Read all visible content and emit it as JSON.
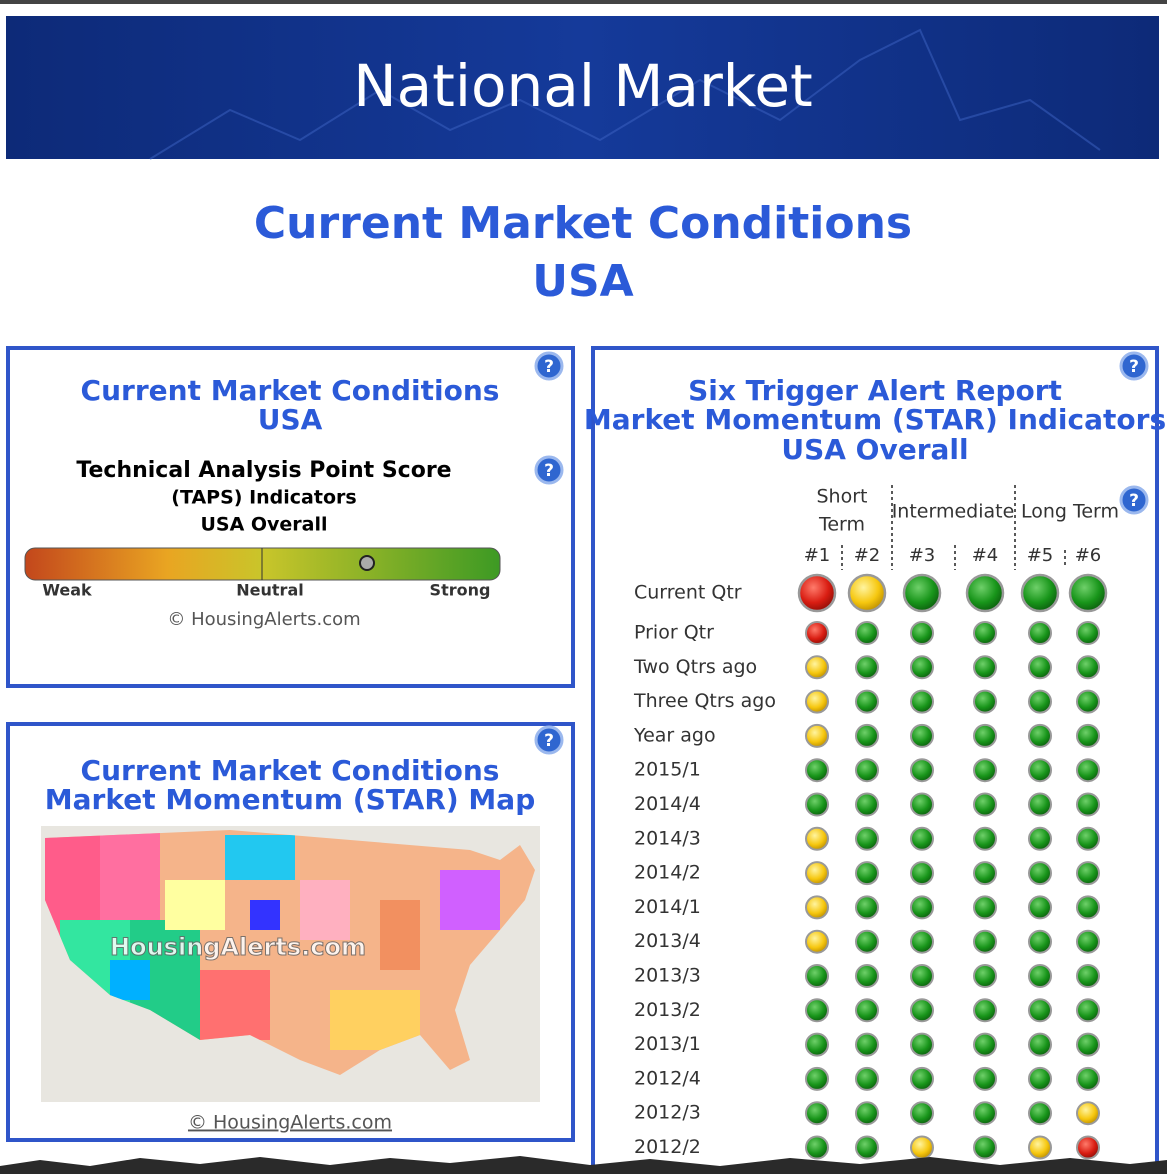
{
  "banner": {
    "title": "National Market"
  },
  "heading": {
    "lines": [
      "Current Market Conditions",
      "USA"
    ]
  },
  "help_icon": "?",
  "taps_panel": {
    "title_lines": [
      "Current Market Conditions",
      "USA"
    ],
    "subtitle_lines": [
      "Technical Analysis Point Score",
      "(TAPS) Indicators",
      "USA Overall"
    ],
    "gauge_labels": [
      "Weak",
      "Neutral",
      "Strong"
    ],
    "copyright": "© HousingAlerts.com"
  },
  "map_panel": {
    "title_lines": [
      "Current Market Conditions",
      "Market Momentum (STAR) Map"
    ],
    "watermark": "HousingAlerts.com",
    "copyright": "© HousingAlerts.com"
  },
  "star_panel": {
    "title_lines": [
      "Six Trigger Alert Report",
      "Market Momentum (STAR) Indicators",
      "USA Overall"
    ],
    "groups": [
      [
        "Short",
        "Term"
      ],
      [
        "Intermediate"
      ],
      [
        "Long Term"
      ]
    ],
    "columns": [
      "#1",
      "#2",
      "#3",
      "#4",
      "#5",
      "#6"
    ],
    "rows": [
      {
        "label": "Current Qtr",
        "status": [
          "red",
          "yellow",
          "green",
          "green",
          "green",
          "green"
        ]
      },
      {
        "label": "Prior Qtr",
        "status": [
          "red",
          "green",
          "green",
          "green",
          "green",
          "green"
        ]
      },
      {
        "label": "Two Qtrs ago",
        "status": [
          "yellow",
          "green",
          "green",
          "green",
          "green",
          "green"
        ]
      },
      {
        "label": "Three Qtrs ago",
        "status": [
          "yellow",
          "green",
          "green",
          "green",
          "green",
          "green"
        ]
      },
      {
        "label": "Year ago",
        "status": [
          "yellow",
          "green",
          "green",
          "green",
          "green",
          "green"
        ]
      },
      {
        "label": "2015/1",
        "status": [
          "green",
          "green",
          "green",
          "green",
          "green",
          "green"
        ]
      },
      {
        "label": "2014/4",
        "status": [
          "green",
          "green",
          "green",
          "green",
          "green",
          "green"
        ]
      },
      {
        "label": "2014/3",
        "status": [
          "yellow",
          "green",
          "green",
          "green",
          "green",
          "green"
        ]
      },
      {
        "label": "2014/2",
        "status": [
          "yellow",
          "green",
          "green",
          "green",
          "green",
          "green"
        ]
      },
      {
        "label": "2014/1",
        "status": [
          "yellow",
          "green",
          "green",
          "green",
          "green",
          "green"
        ]
      },
      {
        "label": "2013/4",
        "status": [
          "yellow",
          "green",
          "green",
          "green",
          "green",
          "green"
        ]
      },
      {
        "label": "2013/3",
        "status": [
          "green",
          "green",
          "green",
          "green",
          "green",
          "green"
        ]
      },
      {
        "label": "2013/2",
        "status": [
          "green",
          "green",
          "green",
          "green",
          "green",
          "green"
        ]
      },
      {
        "label": "2013/1",
        "status": [
          "green",
          "green",
          "green",
          "green",
          "green",
          "green"
        ]
      },
      {
        "label": "2012/4",
        "status": [
          "green",
          "green",
          "green",
          "green",
          "green",
          "green"
        ]
      },
      {
        "label": "2012/3",
        "status": [
          "green",
          "green",
          "green",
          "green",
          "green",
          "yellow"
        ]
      },
      {
        "label": "2012/2",
        "status": [
          "green",
          "green",
          "yellow",
          "green",
          "yellow",
          "red"
        ]
      }
    ]
  }
}
